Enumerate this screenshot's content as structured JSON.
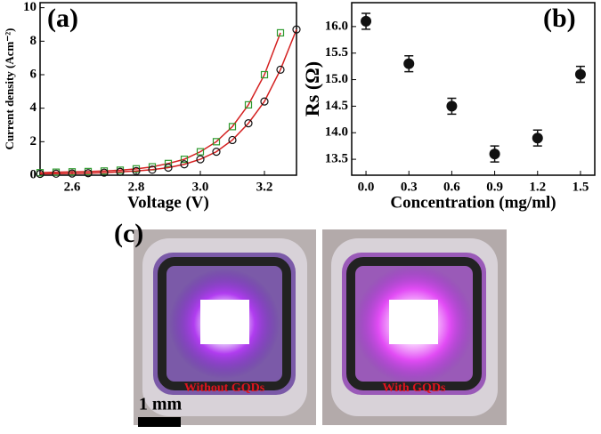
{
  "chart_data": [
    {
      "type": "line",
      "annotation": "(a)",
      "x_label": "Voltage (V)",
      "y_label": "Current density (Acm⁻²)",
      "x": [
        2.5,
        2.55,
        2.6,
        2.65,
        2.7,
        2.75,
        2.8,
        2.85,
        2.9,
        2.95,
        3.0,
        3.05,
        3.1,
        3.15,
        3.2,
        3.25,
        3.3
      ],
      "series": [
        {
          "color": "#2e9a2e",
          "marker": "square",
          "line_color": "#d42020",
          "values": [
            0.15,
            0.18,
            0.2,
            0.22,
            0.25,
            0.3,
            0.38,
            0.5,
            0.7,
            0.95,
            1.4,
            2.0,
            2.9,
            4.2,
            6.0,
            8.5,
            null
          ]
        },
        {
          "color": "#111111",
          "marker": "circle",
          "line_color": "#d42020",
          "values": [
            0.08,
            0.09,
            0.1,
            0.12,
            0.15,
            0.2,
            0.25,
            0.33,
            0.45,
            0.65,
            0.95,
            1.4,
            2.1,
            3.1,
            4.4,
            6.3,
            8.7
          ]
        }
      ],
      "xlim": [
        2.5,
        3.3
      ],
      "xticks": [
        2.6,
        2.8,
        {
          "value": 3,
          "label": "3.0"
        },
        3.2
      ],
      "ylim": [
        0,
        10.3
      ],
      "yticks": [
        0,
        2,
        4,
        6,
        8,
        10
      ]
    },
    {
      "type": "scatter",
      "annotation": "(b)",
      "x_label": "Concentration (mg/ml)",
      "y_label": "Rs (Ω)",
      "x": [
        0,
        0.3,
        0.6,
        0.9,
        1.2,
        1.5
      ],
      "values": [
        16.1,
        15.3,
        14.5,
        13.6,
        13.9,
        15.1
      ],
      "errors": [
        0.15,
        0.15,
        0.15,
        0.15,
        0.15,
        0.15
      ],
      "color": "#111111",
      "xlim": [
        -0.1,
        1.6
      ],
      "xticks": [
        {
          "value": 0,
          "label": "0.0"
        },
        0.3,
        0.6,
        0.9,
        1.2,
        1.5
      ],
      "ylim": [
        13.2,
        16.45
      ],
      "yticks": [
        13.5,
        {
          "value": 14,
          "label": "14.0"
        },
        14.5,
        {
          "value": 15,
          "label": "15.0"
        },
        15.5,
        {
          "value": 16,
          "label": "16.0"
        }
      ]
    }
  ],
  "panel_c": {
    "label": "(c)",
    "captions": [
      "Without GQDs",
      "With GQDs"
    ],
    "scale_bar": "1 mm"
  }
}
